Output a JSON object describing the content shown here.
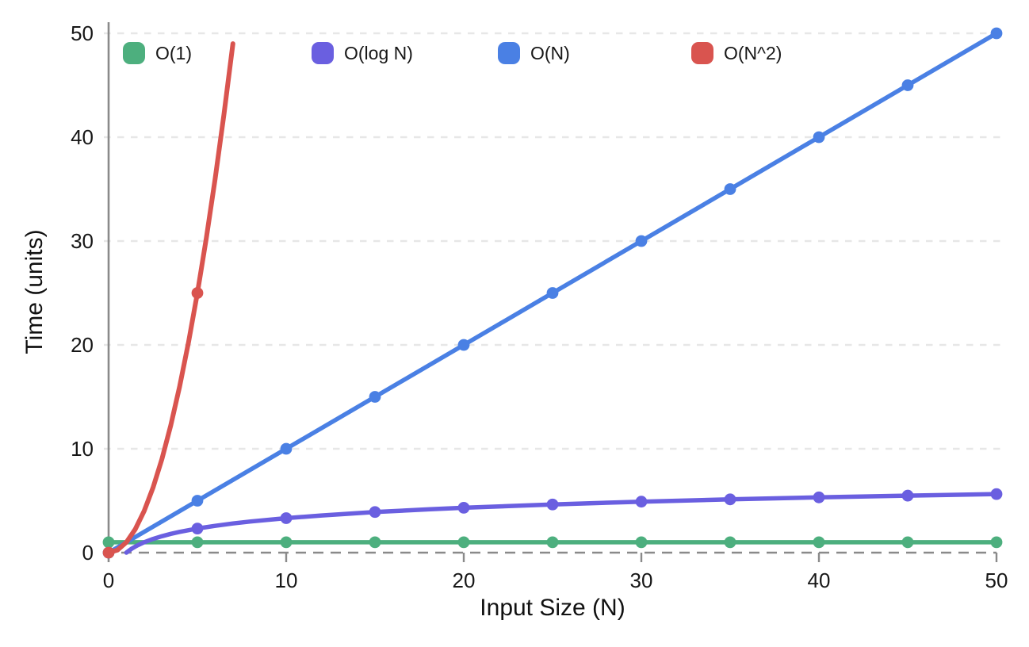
{
  "chart_data": {
    "type": "line",
    "title": "",
    "xlabel": "Input Size (N)",
    "ylabel": "Time (units)",
    "xlim": [
      0,
      50
    ],
    "ylim": [
      0,
      50
    ],
    "xticks": [
      0,
      10,
      20,
      30,
      40,
      50
    ],
    "yticks": [
      0,
      10,
      20,
      30,
      40,
      50
    ],
    "grid": "horizontal-dashed",
    "legend_position": "top",
    "style": {
      "background": "#ffffff",
      "grid_color": "#e7e7e7",
      "baseline_color": "#8a8a8a",
      "axis_color": "#8a8a8a",
      "text_color": "#171717"
    },
    "series": [
      {
        "name": "O(1)",
        "color": "#4daf7e",
        "line": [
          [
            0,
            1
          ],
          [
            50,
            1
          ]
        ],
        "points": [
          [
            0,
            1
          ],
          [
            5,
            1
          ],
          [
            10,
            1
          ],
          [
            15,
            1
          ],
          [
            20,
            1
          ],
          [
            25,
            1
          ],
          [
            30,
            1
          ],
          [
            35,
            1
          ],
          [
            40,
            1
          ],
          [
            45,
            1
          ],
          [
            50,
            1
          ]
        ]
      },
      {
        "name": "O(log N)",
        "color": "#6a5fe0",
        "line": [
          [
            1,
            0
          ],
          [
            1.3,
            0.38
          ],
          [
            1.6,
            0.68
          ],
          [
            2,
            1
          ],
          [
            2.5,
            1.32
          ],
          [
            3,
            1.58
          ],
          [
            3.5,
            1.81
          ],
          [
            4,
            2
          ],
          [
            5,
            2.32
          ],
          [
            6,
            2.58
          ],
          [
            7,
            2.81
          ],
          [
            8,
            3
          ],
          [
            10,
            3.32
          ],
          [
            12,
            3.58
          ],
          [
            15,
            3.91
          ],
          [
            18,
            4.17
          ],
          [
            20,
            4.32
          ],
          [
            25,
            4.64
          ],
          [
            30,
            4.91
          ],
          [
            35,
            5.13
          ],
          [
            40,
            5.32
          ],
          [
            45,
            5.49
          ],
          [
            50,
            5.64
          ]
        ],
        "points": [
          [
            5,
            2.32
          ],
          [
            10,
            3.32
          ],
          [
            15,
            3.91
          ],
          [
            20,
            4.32
          ],
          [
            25,
            4.64
          ],
          [
            30,
            4.91
          ],
          [
            35,
            5.13
          ],
          [
            40,
            5.32
          ],
          [
            45,
            5.49
          ],
          [
            50,
            5.64
          ]
        ]
      },
      {
        "name": "O(N)",
        "color": "#4a80e4",
        "line": [
          [
            0,
            0
          ],
          [
            50,
            50
          ]
        ],
        "points": [
          [
            0,
            0
          ],
          [
            5,
            5
          ],
          [
            10,
            10
          ],
          [
            15,
            15
          ],
          [
            20,
            20
          ],
          [
            25,
            25
          ],
          [
            30,
            30
          ],
          [
            35,
            35
          ],
          [
            40,
            40
          ],
          [
            45,
            45
          ],
          [
            50,
            50
          ]
        ]
      },
      {
        "name": "O(N^2)",
        "color": "#d9544f",
        "line": [
          [
            0,
            0
          ],
          [
            0.5,
            0.25
          ],
          [
            1,
            1
          ],
          [
            1.5,
            2.25
          ],
          [
            2,
            4
          ],
          [
            2.5,
            6.25
          ],
          [
            3,
            9
          ],
          [
            3.5,
            12.25
          ],
          [
            4,
            16
          ],
          [
            4.5,
            20.25
          ],
          [
            5,
            25
          ],
          [
            5.5,
            30.25
          ],
          [
            6,
            36
          ],
          [
            6.5,
            42.25
          ],
          [
            7,
            49
          ]
        ],
        "points": [
          [
            0,
            0
          ],
          [
            5,
            25
          ]
        ]
      }
    ]
  }
}
